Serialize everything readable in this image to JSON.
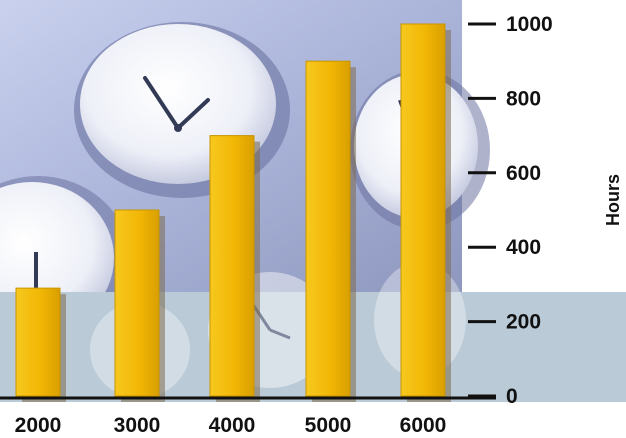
{
  "chart_data": {
    "type": "bar",
    "categories": [
      "2000",
      "3000",
      "4000",
      "5000",
      "6000"
    ],
    "values": [
      290,
      500,
      700,
      900,
      1000
    ],
    "title": "",
    "xlabel": "",
    "ylabel": "Hours",
    "ylim": [
      0,
      1000
    ],
    "yticks": [
      "0",
      "200",
      "400",
      "600",
      "800",
      "1000"
    ],
    "grid": false,
    "legend": "none",
    "colors": {
      "bar": "#F2B705",
      "bar_edge": "#C99500",
      "bar_shadow": "#7C6A4E",
      "axis": "#111111",
      "background_sky": "#B9C3E0",
      "background_lower": "#BACAD6"
    },
    "background_image": "clock-faces-photo"
  }
}
